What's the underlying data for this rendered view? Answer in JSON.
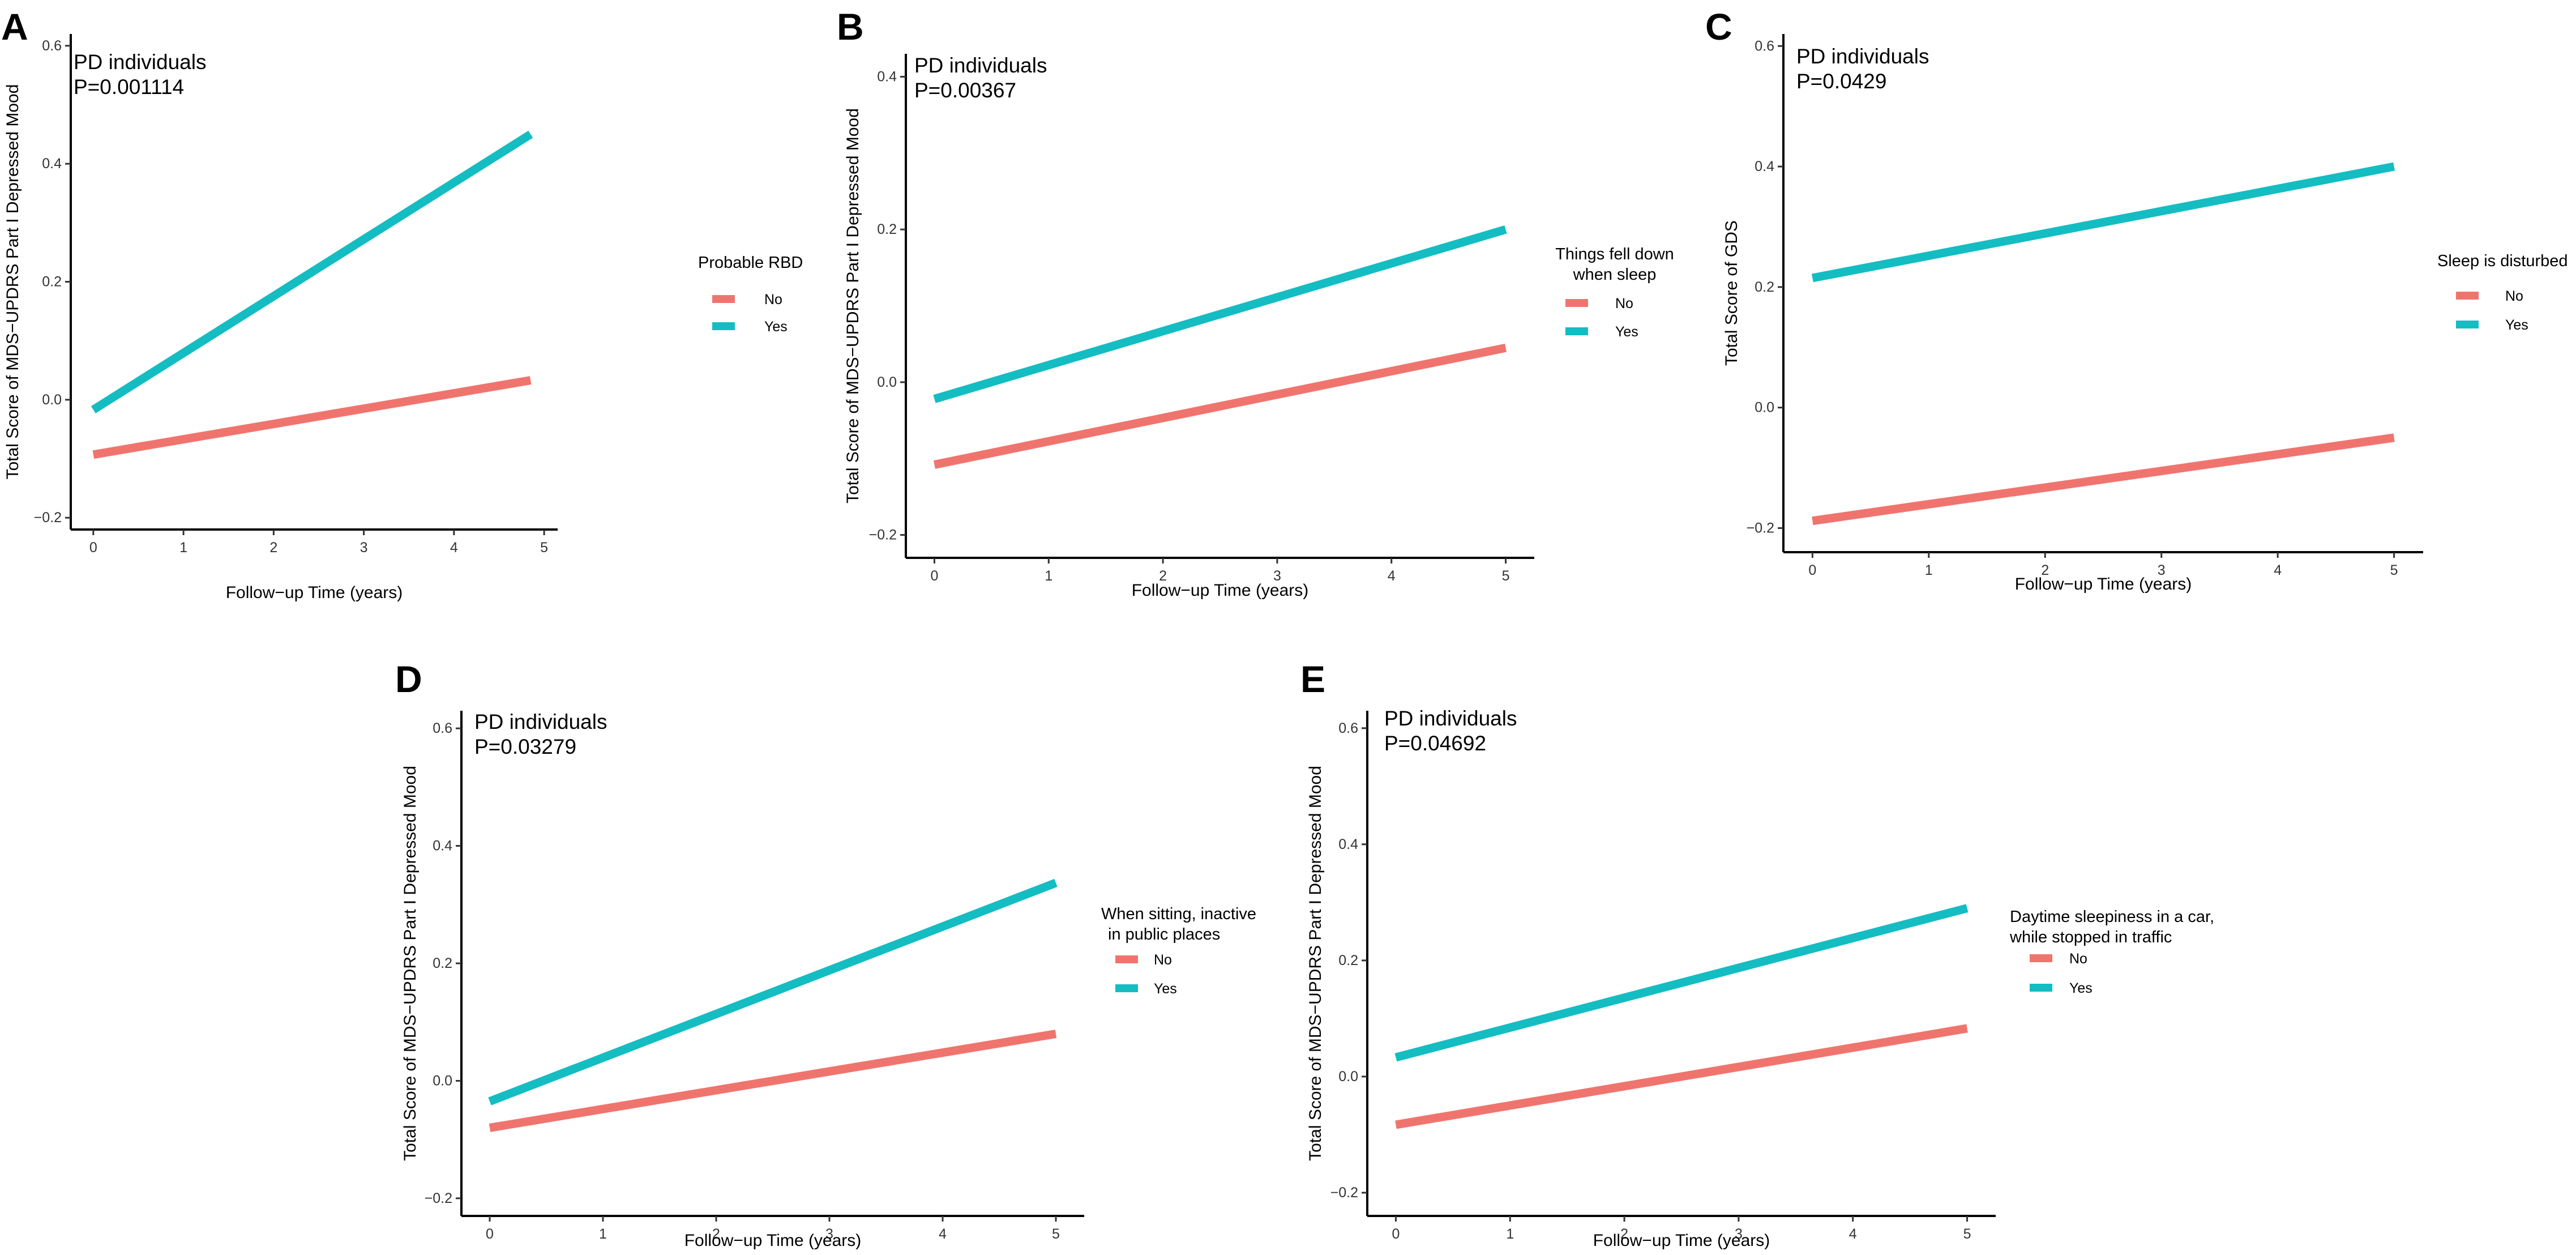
{
  "figure": {
    "group_colors": {
      "No": "#F0746E",
      "Yes": "#14BDC2"
    },
    "x_tick_labels": [
      "0",
      "1",
      "2",
      "3",
      "4",
      "5"
    ],
    "y_tick_labels_a": [
      "−0.2",
      "0.0",
      "0.2",
      "0.4",
      "0.6"
    ],
    "y_tick_labels_b": [
      "−0.2",
      "0.0",
      "0.2",
      "0.4"
    ]
  },
  "chart_data": [
    {
      "panel": "A",
      "type": "line",
      "annotation": [
        "PD  individuals",
        "P=0.001114"
      ],
      "xlabel": "Follow−up Time (years)",
      "ylabel": "Total Score of MDS−UPDRS Part I Depressed Mood",
      "xlim": [
        -0.25,
        5.15
      ],
      "ylim": [
        -0.22,
        0.62
      ],
      "x_ticks": [
        0,
        1,
        2,
        3,
        4,
        5
      ],
      "y_ticks": [
        -0.2,
        0.0,
        0.2,
        0.4,
        0.6
      ],
      "legend_title": [
        "Probable RBD"
      ],
      "legend": [
        "No",
        "Yes"
      ],
      "series": [
        {
          "name": "No",
          "x": [
            0,
            4.85
          ],
          "y": [
            -0.093,
            0.033
          ]
        },
        {
          "name": "Yes",
          "x": [
            0,
            4.85
          ],
          "y": [
            -0.017,
            0.45
          ]
        }
      ]
    },
    {
      "panel": "B",
      "type": "line",
      "annotation": [
        "PD  individuals",
        "P=0.00367"
      ],
      "xlabel": "Follow−up Time (years)",
      "ylabel": "Total Score of MDS−UPDRS Part I Depressed Mood",
      "xlim": [
        -0.25,
        5.25
      ],
      "ylim": [
        -0.23,
        0.43
      ],
      "x_ticks": [
        0,
        1,
        2,
        3,
        4,
        5
      ],
      "y_ticks": [
        -0.2,
        0.0,
        0.2,
        0.4
      ],
      "legend_title": [
        "Things fell down",
        "when sleep"
      ],
      "legend": [
        "No",
        "Yes"
      ],
      "series": [
        {
          "name": "No",
          "x": [
            0,
            5
          ],
          "y": [
            -0.108,
            0.045
          ]
        },
        {
          "name": "Yes",
          "x": [
            0,
            5
          ],
          "y": [
            -0.022,
            0.2
          ]
        }
      ]
    },
    {
      "panel": "C",
      "type": "line",
      "annotation": [
        "PD  individuals",
        "P=0.0429"
      ],
      "xlabel": "Follow−up Time (years)",
      "ylabel": "Total Score of GDS",
      "xlim": [
        -0.25,
        5.25
      ],
      "ylim": [
        -0.24,
        0.62
      ],
      "x_ticks": [
        0,
        1,
        2,
        3,
        4,
        5
      ],
      "y_ticks": [
        -0.2,
        0.0,
        0.2,
        0.4,
        0.6
      ],
      "legend_title": [
        "Sleep is disturbed"
      ],
      "legend": [
        "No",
        "Yes"
      ],
      "series": [
        {
          "name": "No",
          "x": [
            0,
            5
          ],
          "y": [
            -0.188,
            -0.05
          ]
        },
        {
          "name": "Yes",
          "x": [
            0,
            5
          ],
          "y": [
            0.215,
            0.4
          ]
        }
      ]
    },
    {
      "panel": "D",
      "type": "line",
      "annotation": [
        "PD  individuals",
        "P=0.03279"
      ],
      "xlabel": "Follow−up Time (years)",
      "ylabel": "Total Score of MDS−UPDRS Part I Depressed Mood",
      "xlim": [
        -0.25,
        5.25
      ],
      "ylim": [
        -0.23,
        0.63
      ],
      "x_ticks": [
        0,
        1,
        2,
        3,
        4,
        5
      ],
      "y_ticks": [
        -0.2,
        0.0,
        0.2,
        0.4,
        0.6
      ],
      "legend_title": [
        "When sitting, inactive",
        "in public places"
      ],
      "legend": [
        "No",
        "Yes"
      ],
      "series": [
        {
          "name": "No",
          "x": [
            0,
            5
          ],
          "y": [
            -0.08,
            0.08
          ]
        },
        {
          "name": "Yes",
          "x": [
            0,
            5
          ],
          "y": [
            -0.035,
            0.337
          ]
        }
      ]
    },
    {
      "panel": "E",
      "type": "line",
      "annotation": [
        "PD  individuals",
        "P=0.04692"
      ],
      "xlabel": "Follow−up Time (years)",
      "ylabel": "Total Score of MDS−UPDRS Part I Depressed Mood",
      "xlim": [
        -0.25,
        5.25
      ],
      "ylim": [
        -0.24,
        0.63
      ],
      "x_ticks": [
        0,
        1,
        2,
        3,
        4,
        5
      ],
      "y_ticks": [
        -0.2,
        0.0,
        0.2,
        0.4,
        0.6
      ],
      "legend_title": [
        "Daytime sleepiness in a car,",
        "while stopped in traffic"
      ],
      "legend": [
        "No",
        "Yes"
      ],
      "series": [
        {
          "name": "No",
          "x": [
            0,
            5
          ],
          "y": [
            -0.083,
            0.083
          ]
        },
        {
          "name": "Yes",
          "x": [
            0,
            5
          ],
          "y": [
            0.033,
            0.29
          ]
        }
      ]
    }
  ]
}
